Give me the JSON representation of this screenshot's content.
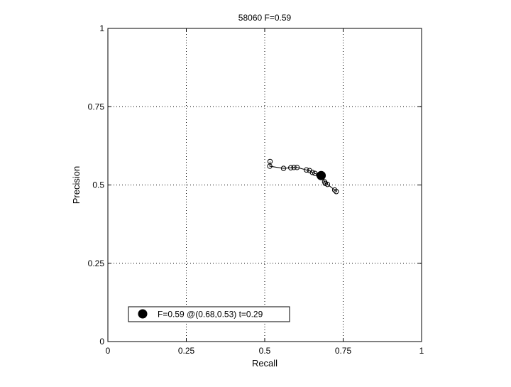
{
  "chart_data": {
    "type": "scatter",
    "title": "58060 F=0.59",
    "xlabel": "Recall",
    "ylabel": "Precision",
    "xlim": [
      0,
      1
    ],
    "ylim": [
      0,
      1
    ],
    "grid": true,
    "grid_style": "dotted",
    "xticks": [
      0,
      0.25,
      0.5,
      0.75,
      1
    ],
    "yticks": [
      0,
      0.25,
      0.5,
      0.75,
      1
    ],
    "xtick_labels": [
      "0",
      "0.25",
      "0.5",
      "0.75",
      "1"
    ],
    "ytick_labels": [
      "0",
      "0.25",
      "0.5",
      "0.75",
      "1"
    ],
    "series": [
      {
        "marker": "open-circle",
        "line": true,
        "color": "#000000",
        "points": [
          {
            "x": 0.517,
            "y": 0.575
          },
          {
            "x": 0.516,
            "y": 0.56
          },
          {
            "x": 0.56,
            "y": 0.553
          },
          {
            "x": 0.583,
            "y": 0.555
          },
          {
            "x": 0.593,
            "y": 0.556
          },
          {
            "x": 0.603,
            "y": 0.556
          },
          {
            "x": 0.633,
            "y": 0.548
          },
          {
            "x": 0.643,
            "y": 0.546
          },
          {
            "x": 0.652,
            "y": 0.54
          },
          {
            "x": 0.66,
            "y": 0.537
          },
          {
            "x": 0.672,
            "y": 0.532
          },
          {
            "x": 0.682,
            "y": 0.527
          },
          {
            "x": 0.691,
            "y": 0.51
          },
          {
            "x": 0.693,
            "y": 0.505
          },
          {
            "x": 0.7,
            "y": 0.502
          },
          {
            "x": 0.723,
            "y": 0.484
          },
          {
            "x": 0.728,
            "y": 0.479
          }
        ]
      }
    ],
    "highlight": {
      "x": 0.68,
      "y": 0.53,
      "marker": "filled-circle",
      "color": "#000000"
    },
    "legend": {
      "position": "bottom-left",
      "entries": [
        {
          "label": "F=0.59 @(0.68,0.53) t=0.29",
          "marker": "filled-circle"
        }
      ]
    }
  }
}
